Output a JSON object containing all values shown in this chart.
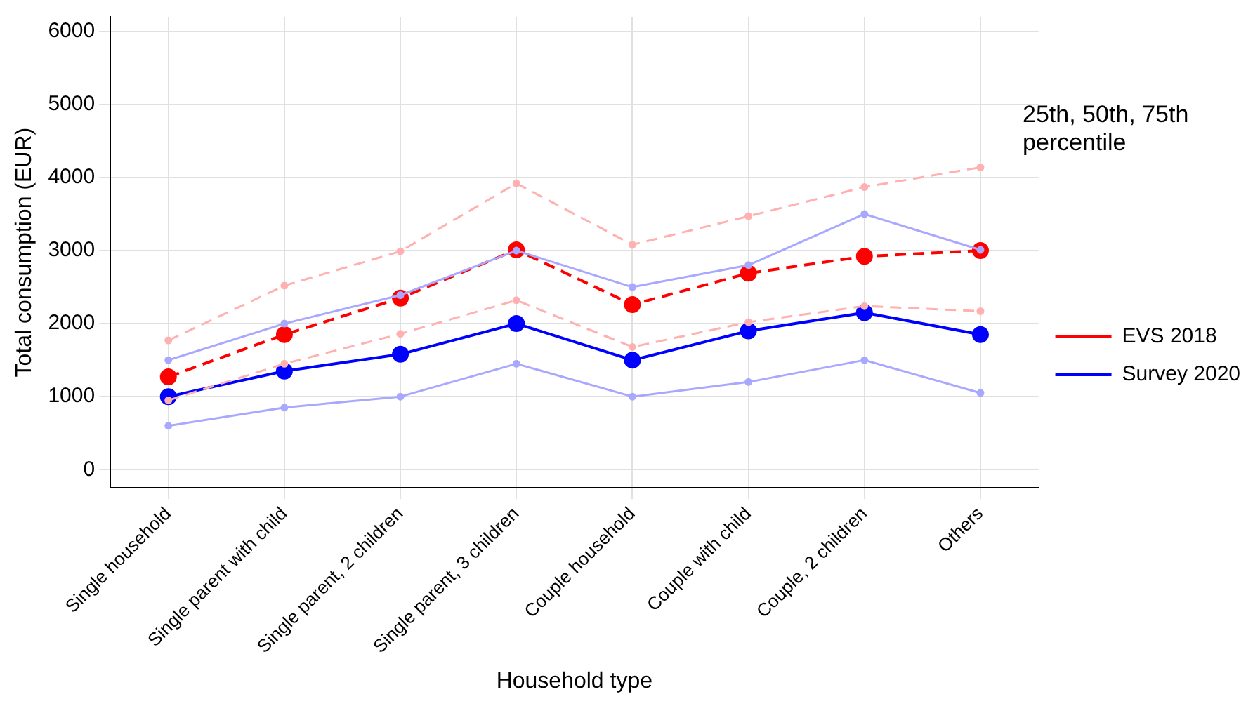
{
  "chart_data": {
    "type": "line",
    "xlabel": "Household type",
    "ylabel": "Total consumption (EUR)",
    "legend_title": "25th, 50th, 75th percentile",
    "legend": "right",
    "grid": true,
    "marker": "circle",
    "categories": [
      "Single household",
      "Single parent with child",
      "Single parent, 2 children",
      "Single parent, 3 children",
      "Couple household",
      "Couple with child",
      "Couple, 2 children",
      "Others"
    ],
    "ylim": [
      -250,
      6200
    ],
    "yticks": [
      0,
      1000,
      2000,
      3000,
      4000,
      5000,
      6000
    ],
    "series": [
      {
        "color": "#ffb0b0",
        "line_style": "dashed",
        "values": [
          1770,
          2520,
          2990,
          3920,
          3080,
          3470,
          3870,
          4140
        ]
      },
      {
        "color": "#ffb0b0",
        "line_style": "dashed",
        "values": [
          950,
          1450,
          1860,
          2320,
          1680,
          2020,
          2240,
          2170
        ]
      },
      {
        "color": "#a8a8ff",
        "line_style": "solid",
        "values": [
          1500,
          2000,
          2390,
          3000,
          2500,
          2800,
          3500,
          3010
        ]
      },
      {
        "color": "#a8a8ff",
        "line_style": "solid",
        "values": [
          600,
          850,
          1000,
          1450,
          1000,
          1200,
          1500,
          1050
        ]
      },
      {
        "name": "EVS 2018",
        "color": "#ff0000",
        "line_style": "dashed",
        "values": [
          1270,
          1850,
          2350,
          3010,
          2260,
          2690,
          2920,
          3000
        ]
      },
      {
        "name": "Survey 2020",
        "color": "#0000ff",
        "line_style": "solid",
        "values": [
          1000,
          1350,
          1580,
          2000,
          1500,
          1900,
          2150,
          1850
        ]
      }
    ]
  }
}
